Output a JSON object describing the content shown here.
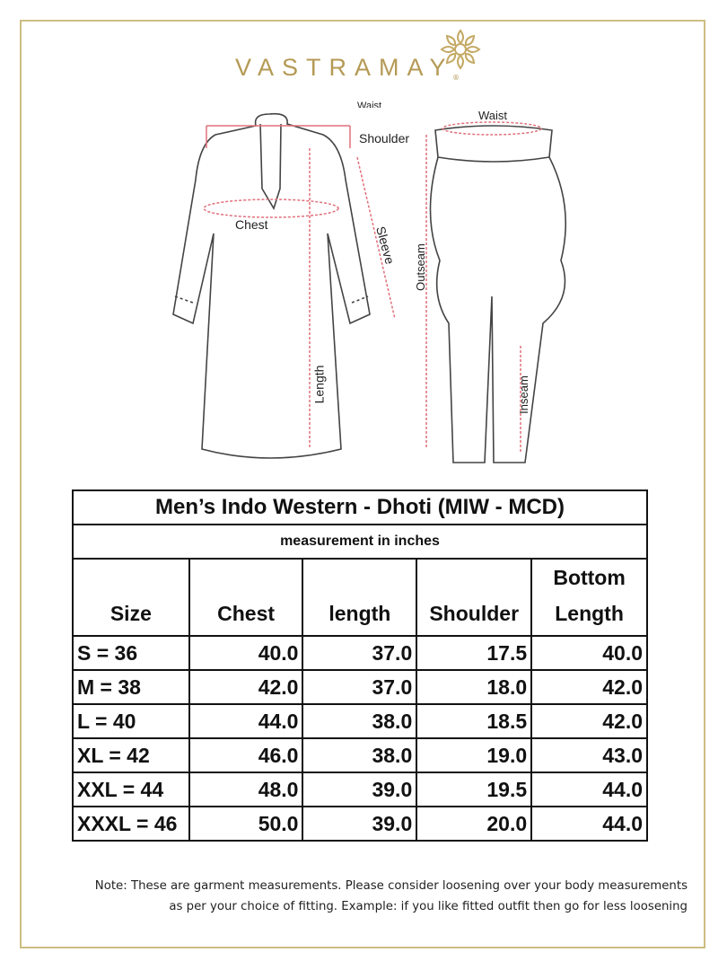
{
  "brand": {
    "name": "VASTRAMAY",
    "registered": "®",
    "color": "#b59a55"
  },
  "diagram": {
    "kurta_labels": {
      "waist": "Waist",
      "shoulder": "Shoulder",
      "chest": "Chest",
      "sleeve": "Sleeve",
      "length": "Length"
    },
    "dhoti_labels": {
      "waist": "Waist",
      "outseam": "Outseam",
      "inseam": "Inseam"
    },
    "measure_line_color": "#e0707a"
  },
  "table": {
    "title": "Men’s Indo Western - Dhoti (MIW - MCD)",
    "subtitle": "measurement in inches",
    "headers": [
      "Size",
      "Chest",
      "length",
      "Shoulder",
      "Bottom Length"
    ],
    "rows": [
      [
        "S = 36",
        "40.0",
        "37.0",
        "17.5",
        "40.0"
      ],
      [
        "M = 38",
        "42.0",
        "37.0",
        "18.0",
        "42.0"
      ],
      [
        "L = 40",
        "44.0",
        "38.0",
        "18.5",
        "42.0"
      ],
      [
        "XL = 42",
        "46.0",
        "38.0",
        "19.0",
        "43.0"
      ],
      [
        "XXL = 44",
        "48.0",
        "39.0",
        "19.5",
        "44.0"
      ],
      [
        "XXXL = 46",
        "50.0",
        "39.0",
        "20.0",
        "44.0"
      ]
    ]
  },
  "note": {
    "line1": "Note: These are garment measurements. Please consider loosening over your body measurements",
    "line2": "as per your choice of fitting. Example: if you like fitted outfit then go for less loosening"
  }
}
